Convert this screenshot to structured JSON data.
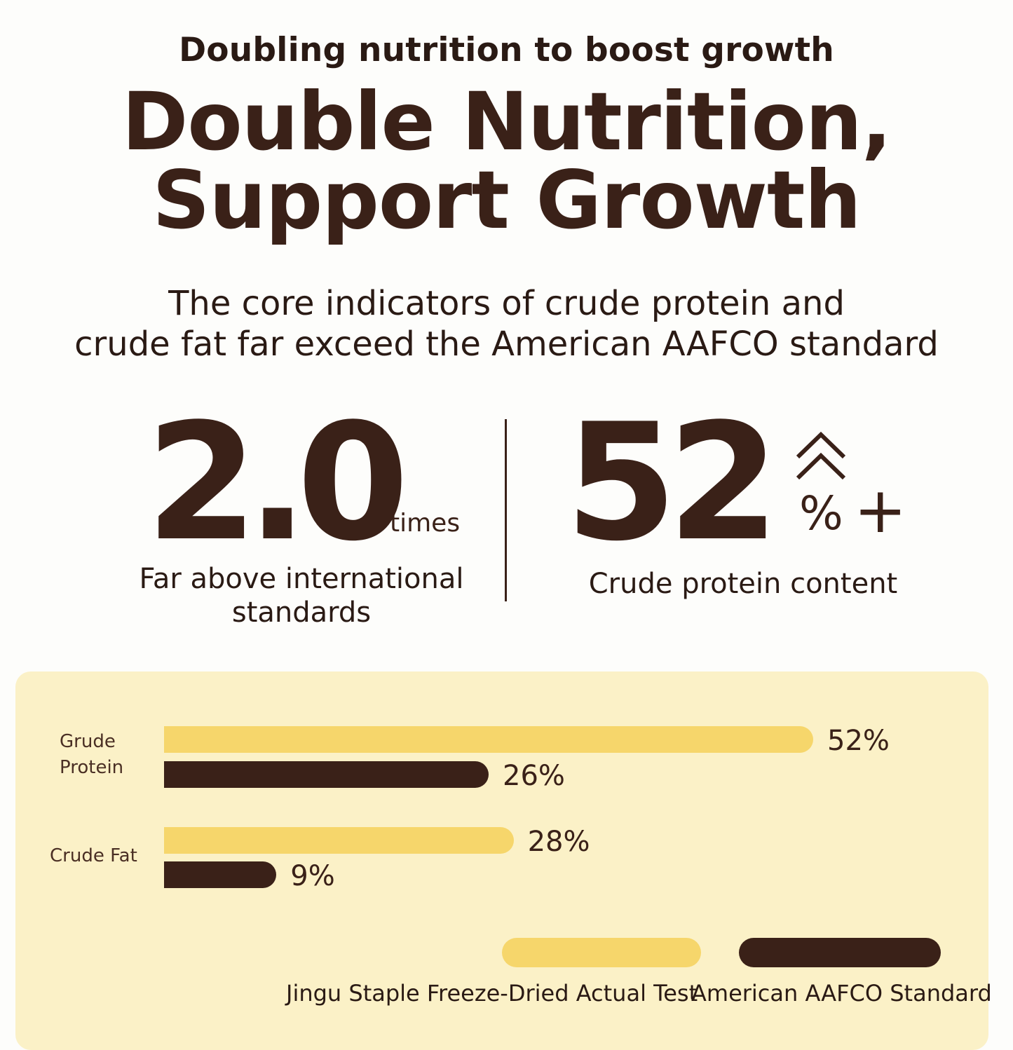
{
  "header": {
    "kicker": "Doubling nutrition to boost growth",
    "title_line1": "Double Nutrition,",
    "title_line2": "Support Growth",
    "subtitle_line1": "The core indicators of crude protein and",
    "subtitle_line2": "crude fat far exceed the American AAFCO standard"
  },
  "stats": {
    "left": {
      "value": "2.0",
      "unit": "times",
      "caption_line1": "Far above international",
      "caption_line2": "standards"
    },
    "right": {
      "value": "52",
      "unit": "%",
      "plus": "+",
      "icon": "double-chevron-up-icon",
      "caption": "Crude protein content"
    }
  },
  "colors": {
    "brand_brown": "#3a2118",
    "accent_yellow": "#f6d66b",
    "card_bg": "#fbf1c7"
  },
  "chart_data": {
    "type": "bar",
    "orientation": "horizontal",
    "categories": [
      "Grude Protein",
      "Crude Fat"
    ],
    "category_label_lines": [
      [
        "Grude",
        "Protein"
      ],
      [
        "Crude Fat"
      ]
    ],
    "series": [
      {
        "name": "Jingu Staple Freeze-Dried Actual Test",
        "values": [
          52,
          28
        ],
        "labels": [
          "52%",
          "28%"
        ],
        "color": "#f6d66b"
      },
      {
        "name": "American AAFCO Standard",
        "values": [
          26,
          9
        ],
        "labels": [
          "26%",
          "9%"
        ],
        "color": "#3a2118"
      }
    ],
    "xlim": [
      0,
      52
    ],
    "unit": "%",
    "legend_position": "bottom-right",
    "grid": false
  }
}
